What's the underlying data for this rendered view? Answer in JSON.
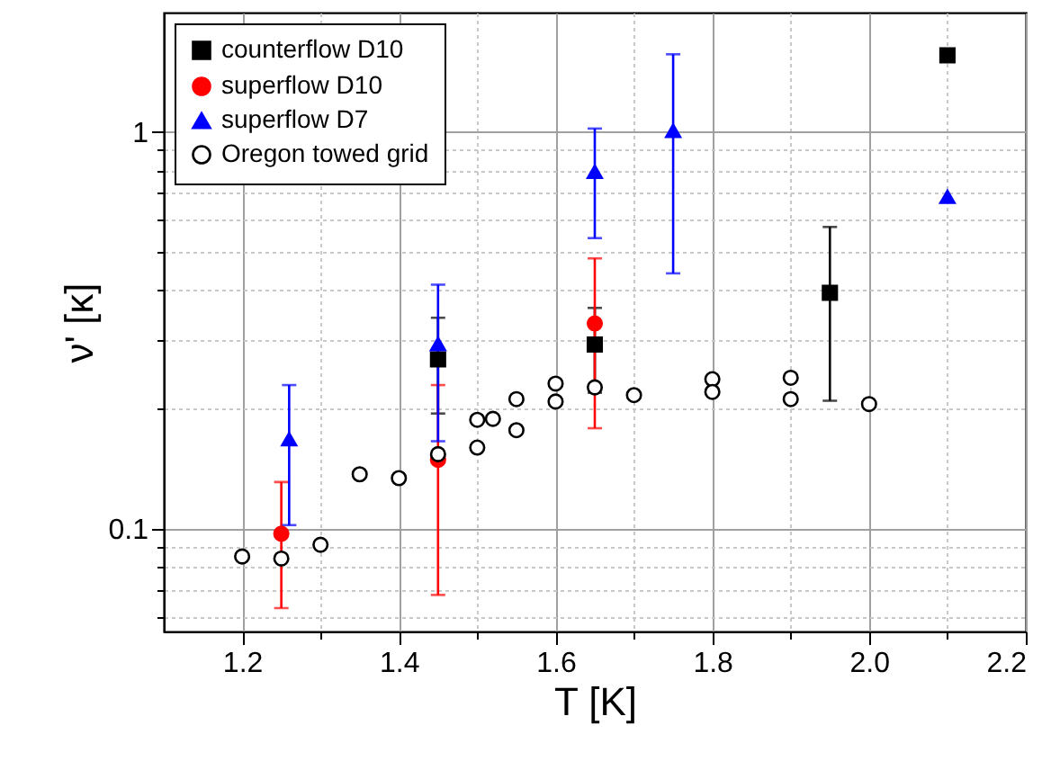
{
  "chart_data": {
    "type": "scatter",
    "xlabel": "T [K]",
    "ylabel": "ν' [κ]",
    "log": "y",
    "grid": true,
    "legend": "top left",
    "xlim": [
      1.1,
      2.2
    ],
    "ylim": [
      0.055,
      2
    ],
    "xticks": [
      1.2,
      {
        "value": 1.3,
        "label": null
      },
      1.4,
      {
        "value": 1.5,
        "label": null
      },
      1.6,
      {
        "value": 1.7,
        "label": null
      },
      1.8,
      {
        "value": 1.9,
        "label": null
      },
      {
        "value": 2,
        "label": "2.0"
      },
      {
        "value": 2.1,
        "label": null
      },
      2.2
    ],
    "yticks": [
      {
        "value": 0.06,
        "label": null
      },
      {
        "value": 0.07,
        "label": null
      },
      {
        "value": 0.08,
        "label": null
      },
      {
        "value": 0.09,
        "label": null
      },
      0.1,
      {
        "value": 0.2,
        "label": null
      },
      {
        "value": 0.3,
        "label": null
      },
      {
        "value": 0.4,
        "label": null
      },
      {
        "value": 0.5,
        "label": null
      },
      {
        "value": 0.6,
        "label": null
      },
      {
        "value": 0.7,
        "label": null
      },
      {
        "value": 0.8,
        "label": null
      },
      {
        "value": 0.9,
        "label": null
      },
      1
    ],
    "series": [
      {
        "name": "counterflow D10",
        "color": "#000000",
        "marker": "square",
        "x": [
          1.45,
          1.65,
          1.95,
          2.1
        ],
        "values": [
          0.267,
          0.291,
          0.393,
          1.56
        ],
        "errors": [
          [
            0.195,
            0.34
          ],
          [
            0.22,
            0.36
          ],
          [
            0.21,
            0.576
          ],
          null
        ]
      },
      {
        "name": "superflow D10",
        "color": "#ff0000",
        "marker": "circle",
        "x": [
          1.25,
          1.45,
          1.65
        ],
        "values": [
          0.097,
          0.149,
          0.329
        ],
        "errors": [
          [
            0.063,
            0.131
          ],
          [
            0.068,
            0.23
          ],
          [
            0.179,
            0.48
          ]
        ]
      },
      {
        "name": "superflow D7",
        "color": "#0000ff",
        "marker": "triangle",
        "x": [
          1.26,
          1.45,
          1.65,
          1.75,
          2.1
        ],
        "values": [
          0.168,
          0.292,
          0.794,
          1.007,
          0.686
        ],
        "errors": [
          [
            0.102,
            0.23
          ],
          [
            0.166,
            0.412
          ],
          [
            0.54,
            1.02
          ],
          [
            0.44,
            1.57
          ],
          null
        ]
      },
      {
        "name": "Oregon towed grid",
        "color": "#ffffff",
        "marker": "circle",
        "x": [
          1.2,
          1.25,
          1.3,
          1.35,
          1.4,
          1.45,
          1.5,
          1.5,
          1.52,
          1.55,
          1.55,
          1.6,
          1.6,
          1.65,
          1.7,
          1.8,
          1.8,
          1.9,
          1.9,
          2.0
        ],
        "values": [
          0.085,
          0.084,
          0.091,
          0.137,
          0.134,
          0.154,
          0.16,
          0.188,
          0.189,
          0.212,
          0.177,
          0.232,
          0.209,
          0.227,
          0.217,
          0.238,
          0.221,
          0.24,
          0.212,
          0.206
        ]
      }
    ]
  }
}
